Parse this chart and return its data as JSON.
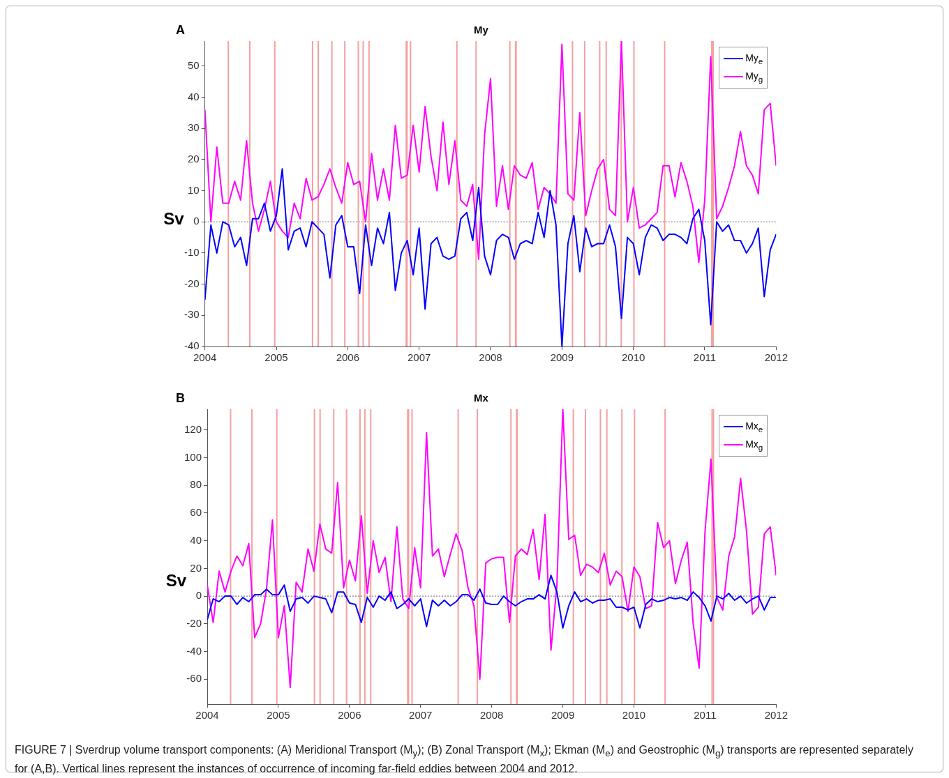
{
  "chart_data": [
    {
      "type": "line",
      "title": "My",
      "ylabel": "Sv",
      "annotations": [
        "A"
      ],
      "legend": "top right",
      "x": [
        "2004-01",
        "2004-02",
        "2004-03",
        "2004-04",
        "2004-05",
        "2004-06",
        "2004-07",
        "2004-08",
        "2004-09",
        "2004-10",
        "2004-11",
        "2004-12",
        "2005-01",
        "2005-02",
        "2005-03",
        "2005-04",
        "2005-05",
        "2005-06",
        "2005-07",
        "2005-08",
        "2005-09",
        "2005-10",
        "2005-11",
        "2005-12",
        "2006-01",
        "2006-02",
        "2006-03",
        "2006-04",
        "2006-05",
        "2006-06",
        "2006-07",
        "2006-08",
        "2006-09",
        "2006-10",
        "2006-11",
        "2006-12",
        "2007-01",
        "2007-02",
        "2007-03",
        "2007-04",
        "2007-05",
        "2007-06",
        "2007-07",
        "2007-08",
        "2007-09",
        "2007-10",
        "2007-11",
        "2007-12",
        "2008-01",
        "2008-02",
        "2008-03",
        "2008-04",
        "2008-05",
        "2008-06",
        "2008-07",
        "2008-08",
        "2008-09",
        "2008-10",
        "2008-11",
        "2008-12",
        "2009-01",
        "2009-02",
        "2009-03",
        "2009-04",
        "2009-05",
        "2009-06",
        "2009-07",
        "2009-08",
        "2009-09",
        "2009-10",
        "2009-11",
        "2009-12",
        "2010-01",
        "2010-02",
        "2010-03",
        "2010-04",
        "2010-05",
        "2010-06",
        "2010-07",
        "2010-08",
        "2010-09",
        "2010-10",
        "2010-11",
        "2010-12",
        "2011-01",
        "2011-02",
        "2011-03",
        "2011-04",
        "2011-05",
        "2011-06",
        "2011-07",
        "2011-08",
        "2011-09",
        "2011-10",
        "2011-11",
        "2011-12",
        "2012-01"
      ],
      "xlim": [
        "2004",
        "2012"
      ],
      "xticks": [
        "2004",
        "2005",
        "2006",
        "2007",
        "2008",
        "2009",
        "2010",
        "2011",
        "2012"
      ],
      "ylim": [
        -40,
        58
      ],
      "yticks": [
        -40,
        -30,
        -20,
        -10,
        0,
        10,
        20,
        30,
        40,
        50
      ],
      "series": [
        {
          "name": "My$_{e}$",
          "color": "#0000ff",
          "values": [
            -25,
            -1,
            -10,
            0,
            -1,
            -8,
            -5,
            -14,
            1,
            1,
            6,
            -3,
            2,
            17,
            -9,
            -3,
            -2,
            -8,
            0,
            -2,
            -4,
            -18,
            -1,
            2,
            -8,
            -8,
            -23,
            -1,
            -14,
            -2,
            -7,
            3,
            -22,
            -10,
            -6,
            -17,
            -2,
            -28,
            -7,
            -5,
            -11,
            -12,
            -11,
            1,
            3,
            -6,
            11,
            -11,
            -17,
            -6,
            -4,
            -5,
            -12,
            -7,
            -6,
            -7,
            3,
            -5,
            10,
            -1,
            -40,
            -7,
            2,
            -16,
            -2,
            -8,
            -7,
            -7,
            -1,
            -8,
            -31,
            -5,
            -7,
            -17,
            -5,
            -1,
            -2,
            -6,
            -4,
            -4,
            -5,
            -7,
            1,
            4,
            -6,
            -33,
            0,
            -3,
            -1,
            -6,
            -6,
            -10,
            -7,
            -2,
            -24,
            -9,
            -4
          ]
        },
        {
          "name": "My$_{g}$",
          "color": "#ff00ff",
          "values": [
            36,
            0,
            24,
            6,
            6,
            13,
            7,
            26,
            6,
            -3,
            4,
            13,
            0,
            -3,
            -5,
            6,
            1,
            14,
            7,
            8,
            12,
            17,
            11,
            6,
            19,
            12,
            13,
            0,
            22,
            7,
            17,
            7,
            31,
            14,
            15,
            31,
            16,
            37,
            21,
            10,
            32,
            12,
            26,
            7,
            5,
            12,
            -12,
            28,
            46,
            5,
            18,
            4,
            18,
            15,
            14,
            19,
            4,
            11,
            9,
            6,
            57,
            9,
            7,
            35,
            2,
            10,
            17,
            20,
            4,
            2,
            58,
            0,
            11,
            -2,
            -1,
            1,
            3,
            18,
            18,
            8,
            19,
            13,
            5,
            -13,
            7,
            53,
            1,
            5,
            11,
            18,
            29,
            18,
            15,
            9,
            36,
            38,
            18
          ]
        }
      ],
      "ref_lines": [
        {
          "axis": "y",
          "value": 0,
          "color": "#666666",
          "line_style": "dotted"
        },
        {
          "axis": "x",
          "value": "2004-04-30",
          "color": "#f4a0a0"
        },
        {
          "axis": "x",
          "value": "2004-08-18",
          "color": "#f4a0a0"
        },
        {
          "axis": "x",
          "value": "2004-12-24",
          "color": "#f4a0a0"
        },
        {
          "axis": "x",
          "value": "2005-07-05",
          "color": "#f4a0a0"
        },
        {
          "axis": "x",
          "value": "2005-08-03",
          "color": "#f4a0a0"
        },
        {
          "axis": "x",
          "value": "2005-10-12",
          "color": "#f4a0a0"
        },
        {
          "axis": "x",
          "value": "2005-12-17",
          "color": "#f4a0a0"
        },
        {
          "axis": "x",
          "value": "2006-02-24",
          "color": "#f4a0a0"
        },
        {
          "axis": "x",
          "value": "2006-03-21",
          "color": "#f4a0a0"
        },
        {
          "axis": "x",
          "value": "2006-04-20",
          "color": "#f4a0a0"
        },
        {
          "axis": "x",
          "value": "2006-10-27",
          "color": "#f4a0a0"
        },
        {
          "axis": "x",
          "value": "2006-10-31",
          "color": "#f4a0a0"
        },
        {
          "axis": "x",
          "value": "2006-11-18",
          "color": "#f4a0a0"
        },
        {
          "axis": "x",
          "value": "2007-07-13",
          "color": "#f4a0a0"
        },
        {
          "axis": "x",
          "value": "2007-10-19",
          "color": "#f4a0a0"
        },
        {
          "axis": "x",
          "value": "2008-04-09",
          "color": "#f4a0a0"
        },
        {
          "axis": "x",
          "value": "2008-05-08",
          "color": "#f4a0a0"
        },
        {
          "axis": "x",
          "value": "2008-05-11",
          "color": "#f4a0a0"
        },
        {
          "axis": "x",
          "value": "2009-02-24",
          "color": "#f4a0a0"
        },
        {
          "axis": "x",
          "value": "2009-04-27",
          "color": "#f4a0a0"
        },
        {
          "axis": "x",
          "value": "2009-07-13",
          "color": "#f4a0a0"
        },
        {
          "axis": "x",
          "value": "2009-08-15",
          "color": "#f4a0a0"
        },
        {
          "axis": "x",
          "value": "2009-10-31",
          "color": "#f4a0a0"
        },
        {
          "axis": "x",
          "value": "2010-01-04",
          "color": "#f4a0a0"
        },
        {
          "axis": "x",
          "value": "2010-06-10",
          "color": "#f4a0a0"
        },
        {
          "axis": "x",
          "value": "2011-02-06",
          "color": "#f4a0a0"
        },
        {
          "axis": "x",
          "value": "2011-02-13",
          "color": "#f4a0a0"
        }
      ]
    },
    {
      "type": "line",
      "title": "Mx",
      "ylabel": "Sv",
      "annotations": [
        "B",
        "FIGURE 7 | Sverdrup volume transport components: (A) Meridional Transport (M$_{y}$); (B) Zonal Transport (M$_{x}$); Ekman (M$_{e}$) and Geostrophic (M$_{g}$) transports are represented separately for (A,B). Vertical lines represent the instances of occurrence of incoming far-field eddies between 2004 and 2012."
      ],
      "legend": "top right",
      "x": [
        "2004-01",
        "2004-02",
        "2004-03",
        "2004-04",
        "2004-05",
        "2004-06",
        "2004-07",
        "2004-08",
        "2004-09",
        "2004-10",
        "2004-11",
        "2004-12",
        "2005-01",
        "2005-02",
        "2005-03",
        "2005-04",
        "2005-05",
        "2005-06",
        "2005-07",
        "2005-08",
        "2005-09",
        "2005-10",
        "2005-11",
        "2005-12",
        "2006-01",
        "2006-02",
        "2006-03",
        "2006-04",
        "2006-05",
        "2006-06",
        "2006-07",
        "2006-08",
        "2006-09",
        "2006-10",
        "2006-11",
        "2006-12",
        "2007-01",
        "2007-02",
        "2007-03",
        "2007-04",
        "2007-05",
        "2007-06",
        "2007-07",
        "2007-08",
        "2007-09",
        "2007-10",
        "2007-11",
        "2007-12",
        "2008-01",
        "2008-02",
        "2008-03",
        "2008-04",
        "2008-05",
        "2008-06",
        "2008-07",
        "2008-08",
        "2008-09",
        "2008-10",
        "2008-11",
        "2008-12",
        "2009-01",
        "2009-02",
        "2009-03",
        "2009-04",
        "2009-05",
        "2009-06",
        "2009-07",
        "2009-08",
        "2009-09",
        "2009-10",
        "2009-11",
        "2009-12",
        "2010-01",
        "2010-02",
        "2010-03",
        "2010-04",
        "2010-05",
        "2010-06",
        "2010-07",
        "2010-08",
        "2010-09",
        "2010-10",
        "2010-11",
        "2010-12",
        "2011-01",
        "2011-02",
        "2011-03",
        "2011-04",
        "2011-05",
        "2011-06",
        "2011-07",
        "2011-08",
        "2011-09",
        "2011-10",
        "2011-11",
        "2011-12",
        "2012-01"
      ],
      "xlim": [
        "2004",
        "2012"
      ],
      "xticks": [
        "2004",
        "2005",
        "2006",
        "2007",
        "2008",
        "2009",
        "2010",
        "2011",
        "2012"
      ],
      "ylim": [
        -78,
        135
      ],
      "yticks": [
        -60,
        -40,
        -20,
        0,
        20,
        40,
        60,
        80,
        100,
        120
      ],
      "series": [
        {
          "name": "Mx$_{e}$",
          "color": "#0000ff",
          "values": [
            -17,
            -2,
            -4,
            0,
            0,
            -6,
            -1,
            -4,
            1,
            1,
            5,
            1,
            1,
            8,
            -11,
            -2,
            -1,
            -5,
            0,
            -1,
            -2,
            -12,
            3,
            3,
            -5,
            -6,
            -19,
            -1,
            -8,
            0,
            -3,
            3,
            -9,
            -6,
            -2,
            -7,
            -2,
            -22,
            -3,
            -7,
            -3,
            -7,
            -4,
            1,
            1,
            -3,
            5,
            -5,
            -6,
            -6,
            0,
            -4,
            -7,
            -4,
            -2,
            -2,
            1,
            -2,
            15,
            3,
            -23,
            -7,
            3,
            -4,
            -2,
            -5,
            -3,
            -3,
            -2,
            -8,
            -8,
            -10,
            -8,
            -23,
            -6,
            -2,
            -4,
            -3,
            -1,
            -2,
            -1,
            -3,
            3,
            -1,
            -7,
            -18,
            0,
            -2,
            2,
            -3,
            0,
            -5,
            -2,
            0,
            -10,
            -1,
            -1
          ]
        },
        {
          "name": "Mx$_{g}$",
          "color": "#ff00ff",
          "values": [
            8,
            -19,
            18,
            3,
            18,
            29,
            22,
            38,
            -30,
            -20,
            5,
            55,
            -30,
            -7,
            -66,
            10,
            3,
            34,
            18,
            52,
            34,
            31,
            82,
            6,
            26,
            11,
            58,
            2,
            40,
            17,
            28,
            -4,
            50,
            -2,
            -9,
            35,
            6,
            118,
            29,
            34,
            14,
            30,
            45,
            33,
            6,
            -7,
            -60,
            24,
            27,
            28,
            28,
            -19,
            29,
            34,
            30,
            48,
            12,
            59,
            -39,
            8,
            135,
            41,
            44,
            15,
            23,
            21,
            17,
            31,
            8,
            18,
            14,
            -11,
            21,
            14,
            -9,
            -7,
            53,
            35,
            40,
            9,
            26,
            39,
            -20,
            -52,
            47,
            99,
            -1,
            -10,
            29,
            43,
            85,
            47,
            -13,
            -8,
            45,
            50,
            15
          ]
        }
      ],
      "ref_lines": [
        {
          "axis": "y",
          "value": 0,
          "color": "#666666",
          "line_style": "dotted"
        },
        {
          "axis": "x",
          "value": "2004-04-30",
          "color": "#f4a0a0"
        },
        {
          "axis": "x",
          "value": "2004-08-18",
          "color": "#f4a0a0"
        },
        {
          "axis": "x",
          "value": "2004-12-24",
          "color": "#f4a0a0"
        },
        {
          "axis": "x",
          "value": "2005-07-05",
          "color": "#f4a0a0"
        },
        {
          "axis": "x",
          "value": "2005-08-03",
          "color": "#f4a0a0"
        },
        {
          "axis": "x",
          "value": "2005-10-12",
          "color": "#f4a0a0"
        },
        {
          "axis": "x",
          "value": "2005-12-17",
          "color": "#f4a0a0"
        },
        {
          "axis": "x",
          "value": "2006-02-24",
          "color": "#f4a0a0"
        },
        {
          "axis": "x",
          "value": "2006-03-21",
          "color": "#f4a0a0"
        },
        {
          "axis": "x",
          "value": "2006-04-20",
          "color": "#f4a0a0"
        },
        {
          "axis": "x",
          "value": "2006-10-27",
          "color": "#f4a0a0"
        },
        {
          "axis": "x",
          "value": "2006-10-31",
          "color": "#f4a0a0"
        },
        {
          "axis": "x",
          "value": "2006-11-18",
          "color": "#f4a0a0"
        },
        {
          "axis": "x",
          "value": "2007-07-13",
          "color": "#f4a0a0"
        },
        {
          "axis": "x",
          "value": "2007-10-19",
          "color": "#f4a0a0"
        },
        {
          "axis": "x",
          "value": "2008-04-09",
          "color": "#f4a0a0"
        },
        {
          "axis": "x",
          "value": "2008-05-08",
          "color": "#f4a0a0"
        },
        {
          "axis": "x",
          "value": "2008-05-11",
          "color": "#f4a0a0"
        },
        {
          "axis": "x",
          "value": "2009-02-24",
          "color": "#f4a0a0"
        },
        {
          "axis": "x",
          "value": "2009-04-27",
          "color": "#f4a0a0"
        },
        {
          "axis": "x",
          "value": "2009-07-13",
          "color": "#f4a0a0"
        },
        {
          "axis": "x",
          "value": "2009-08-15",
          "color": "#f4a0a0"
        },
        {
          "axis": "x",
          "value": "2009-10-31",
          "color": "#f4a0a0"
        },
        {
          "axis": "x",
          "value": "2010-01-04",
          "color": "#f4a0a0"
        },
        {
          "axis": "x",
          "value": "2010-06-10",
          "color": "#f4a0a0"
        },
        {
          "axis": "x",
          "value": "2011-02-06",
          "color": "#f4a0a0"
        },
        {
          "axis": "x",
          "value": "2011-02-13",
          "color": "#f4a0a0"
        }
      ]
    }
  ]
}
